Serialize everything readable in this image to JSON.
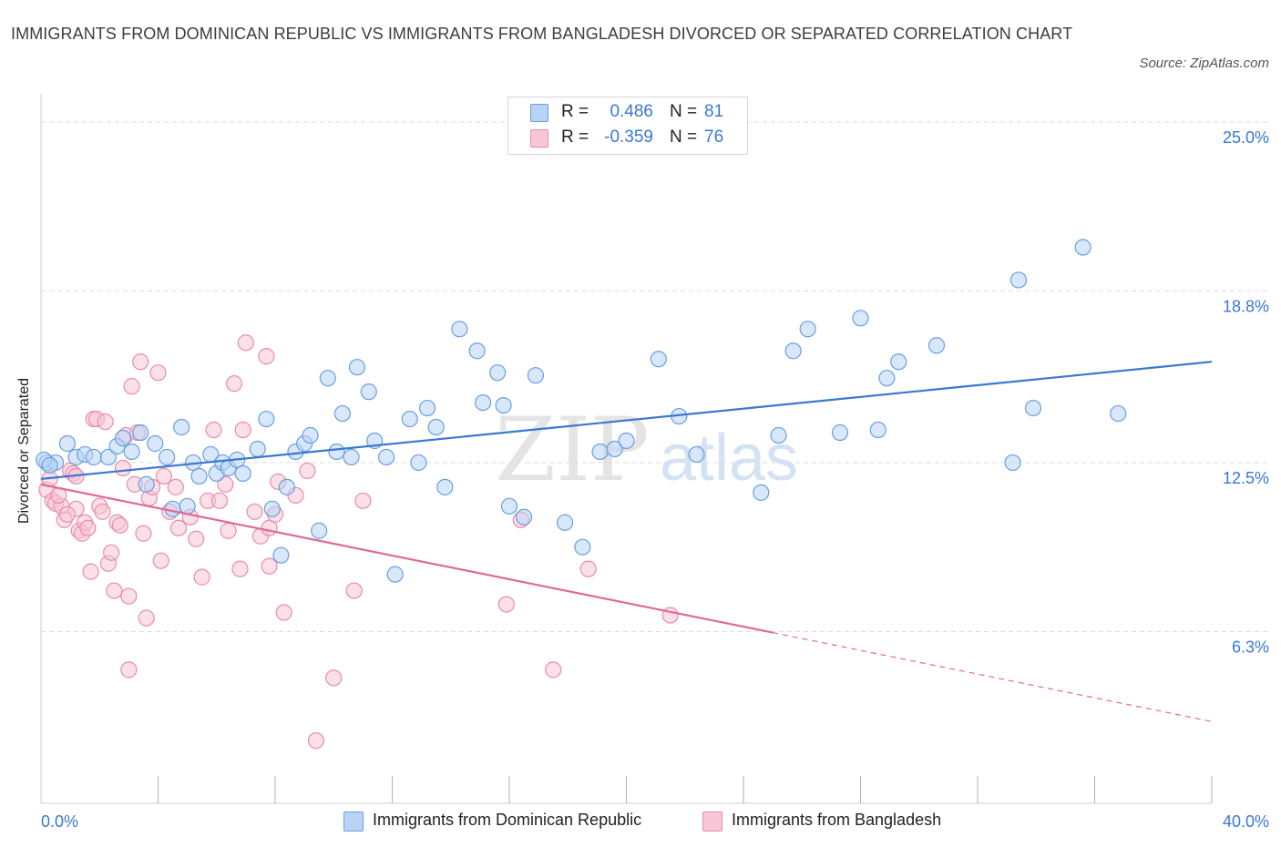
{
  "title": "IMMIGRANTS FROM DOMINICAN REPUBLIC VS IMMIGRANTS FROM BANGLADESH DIVORCED OR SEPARATED CORRELATION CHART",
  "source": "Source: ZipAtlas.com",
  "watermark": {
    "zip": "ZIP",
    "atlas": "atlas"
  },
  "legend": {
    "r_label": "R =",
    "n_label": "N =",
    "series": [
      {
        "r": "0.486",
        "n": "81"
      },
      {
        "r": "-0.359",
        "n": "76"
      }
    ]
  },
  "colors": {
    "blue_fill": "#b8d3f5",
    "blue_stroke": "#6a9fdf",
    "blue_line": "#3a78d4",
    "pink_fill": "#f8c6d6",
    "pink_stroke": "#e98cab",
    "pink_line": "#e0699a",
    "axis_label": "#3a78d4",
    "grid": "#dcdcdc"
  },
  "chart_data": {
    "type": "scatter",
    "title": "IMMIGRANTS FROM DOMINICAN REPUBLIC VS IMMIGRANTS FROM BANGLADESH DIVORCED OR SEPARATED CORRELATION CHART",
    "xlabel": "",
    "ylabel": "Divorced or Separated",
    "xlim": [
      0,
      40
    ],
    "ylim": [
      0,
      26.7
    ],
    "x_tick_labels": [
      {
        "x": 0,
        "label": "0.0%"
      },
      {
        "x": 40,
        "label": "40.0%"
      }
    ],
    "y_ticks": [
      6.3,
      12.5,
      18.8,
      25.0
    ],
    "y_tick_labels": [
      "6.3%",
      "12.5%",
      "18.8%",
      "25.0%"
    ],
    "series": [
      {
        "name": "Immigrants from Dominican Republic",
        "r": 0.486,
        "n": 81,
        "trend": {
          "x0": 0,
          "y0": 11.9,
          "x1": 40,
          "y1": 16.2,
          "dashed_from": null
        },
        "points": [
          [
            0.2,
            12.5
          ],
          [
            0.5,
            12.5
          ],
          [
            0.9,
            13.2
          ],
          [
            1.2,
            12.7
          ],
          [
            1.5,
            12.8
          ],
          [
            1.8,
            12.7
          ],
          [
            2.3,
            12.7
          ],
          [
            2.6,
            13.1
          ],
          [
            2.8,
            13.4
          ],
          [
            3.1,
            12.9
          ],
          [
            3.4,
            13.6
          ],
          [
            3.6,
            11.7
          ],
          [
            3.9,
            13.2
          ],
          [
            4.3,
            12.7
          ],
          [
            4.5,
            10.8
          ],
          [
            4.8,
            13.8
          ],
          [
            5.0,
            10.9
          ],
          [
            5.2,
            12.5
          ],
          [
            5.4,
            12.0
          ],
          [
            5.8,
            12.8
          ],
          [
            6.0,
            12.1
          ],
          [
            6.2,
            12.5
          ],
          [
            6.4,
            12.3
          ],
          [
            6.7,
            12.6
          ],
          [
            6.9,
            12.1
          ],
          [
            7.4,
            13.0
          ],
          [
            7.7,
            14.1
          ],
          [
            7.9,
            10.8
          ],
          [
            8.2,
            9.1
          ],
          [
            8.4,
            11.6
          ],
          [
            8.7,
            12.9
          ],
          [
            9.0,
            13.2
          ],
          [
            9.2,
            13.5
          ],
          [
            9.5,
            10.0
          ],
          [
            9.8,
            15.6
          ],
          [
            10.1,
            12.9
          ],
          [
            10.3,
            14.3
          ],
          [
            10.6,
            12.7
          ],
          [
            10.8,
            16.0
          ],
          [
            11.2,
            15.1
          ],
          [
            11.4,
            13.3
          ],
          [
            11.8,
            12.7
          ],
          [
            12.1,
            8.4
          ],
          [
            12.6,
            14.1
          ],
          [
            12.9,
            12.5
          ],
          [
            13.2,
            14.5
          ],
          [
            13.5,
            13.8
          ],
          [
            13.8,
            11.6
          ],
          [
            14.3,
            17.4
          ],
          [
            14.9,
            16.6
          ],
          [
            15.1,
            14.7
          ],
          [
            15.6,
            15.8
          ],
          [
            15.8,
            14.6
          ],
          [
            16.0,
            10.9
          ],
          [
            16.5,
            10.5
          ],
          [
            16.9,
            15.7
          ],
          [
            17.9,
            10.3
          ],
          [
            18.5,
            9.4
          ],
          [
            19.1,
            12.9
          ],
          [
            19.6,
            13.0
          ],
          [
            20.0,
            13.3
          ],
          [
            21.1,
            16.3
          ],
          [
            21.8,
            14.2
          ],
          [
            22.4,
            12.8
          ],
          [
            24.6,
            11.4
          ],
          [
            25.2,
            13.5
          ],
          [
            25.7,
            16.6
          ],
          [
            26.2,
            17.4
          ],
          [
            27.3,
            13.6
          ],
          [
            28.0,
            17.8
          ],
          [
            28.6,
            13.7
          ],
          [
            28.9,
            15.6
          ],
          [
            29.3,
            16.2
          ],
          [
            30.6,
            16.8
          ],
          [
            33.4,
            19.2
          ],
          [
            33.2,
            12.5
          ],
          [
            33.9,
            14.5
          ],
          [
            35.6,
            20.4
          ],
          [
            36.8,
            14.3
          ],
          [
            0.1,
            12.6
          ],
          [
            0.3,
            12.4
          ]
        ]
      },
      {
        "name": "Immigrants from Bangladesh",
        "r": -0.359,
        "n": 76,
        "trend": {
          "x0": 0,
          "y0": 11.7,
          "x1": 40,
          "y1": 3.0,
          "dashed_from": 25.0
        },
        "points": [
          [
            0.2,
            11.5
          ],
          [
            0.4,
            11.1
          ],
          [
            0.5,
            11.0
          ],
          [
            0.7,
            10.9
          ],
          [
            0.8,
            10.4
          ],
          [
            1.0,
            12.2
          ],
          [
            1.1,
            12.1
          ],
          [
            1.2,
            10.8
          ],
          [
            1.3,
            10.0
          ],
          [
            1.4,
            9.9
          ],
          [
            1.5,
            10.3
          ],
          [
            1.6,
            10.1
          ],
          [
            1.7,
            8.5
          ],
          [
            1.8,
            14.1
          ],
          [
            1.9,
            14.1
          ],
          [
            2.0,
            10.9
          ],
          [
            2.1,
            10.7
          ],
          [
            2.2,
            14.0
          ],
          [
            2.3,
            8.8
          ],
          [
            2.4,
            9.2
          ],
          [
            2.5,
            7.8
          ],
          [
            2.6,
            10.3
          ],
          [
            2.7,
            10.2
          ],
          [
            2.8,
            12.3
          ],
          [
            2.9,
            13.5
          ],
          [
            3.0,
            7.6
          ],
          [
            3.1,
            15.3
          ],
          [
            3.2,
            11.7
          ],
          [
            3.3,
            13.6
          ],
          [
            3.4,
            16.2
          ],
          [
            3.5,
            9.9
          ],
          [
            3.6,
            6.8
          ],
          [
            3.7,
            11.2
          ],
          [
            3.8,
            11.6
          ],
          [
            4.0,
            15.8
          ],
          [
            4.1,
            8.9
          ],
          [
            4.2,
            12.0
          ],
          [
            4.4,
            10.7
          ],
          [
            4.6,
            11.6
          ],
          [
            4.7,
            10.1
          ],
          [
            5.1,
            10.5
          ],
          [
            5.3,
            9.7
          ],
          [
            5.5,
            8.3
          ],
          [
            5.7,
            11.1
          ],
          [
            5.9,
            13.7
          ],
          [
            6.1,
            11.1
          ],
          [
            6.3,
            11.7
          ],
          [
            6.4,
            10.0
          ],
          [
            6.6,
            15.4
          ],
          [
            6.8,
            8.6
          ],
          [
            7.0,
            16.9
          ],
          [
            7.3,
            10.7
          ],
          [
            7.5,
            9.8
          ],
          [
            7.7,
            16.4
          ],
          [
            7.8,
            10.1
          ],
          [
            8.0,
            10.6
          ],
          [
            8.1,
            11.8
          ],
          [
            8.3,
            7.0
          ],
          [
            8.7,
            11.3
          ],
          [
            3.0,
            4.9
          ],
          [
            9.4,
            2.3
          ],
          [
            10.0,
            4.6
          ],
          [
            11.0,
            11.1
          ],
          [
            10.7,
            7.8
          ],
          [
            15.9,
            7.3
          ],
          [
            16.4,
            10.4
          ],
          [
            17.5,
            4.9
          ],
          [
            18.7,
            8.6
          ],
          [
            21.5,
            6.9
          ],
          [
            0.3,
            11.9
          ],
          [
            0.6,
            11.3
          ],
          [
            0.9,
            10.6
          ],
          [
            1.2,
            12.0
          ],
          [
            6.9,
            13.7
          ],
          [
            7.8,
            8.7
          ],
          [
            9.1,
            12.2
          ]
        ]
      }
    ]
  }
}
